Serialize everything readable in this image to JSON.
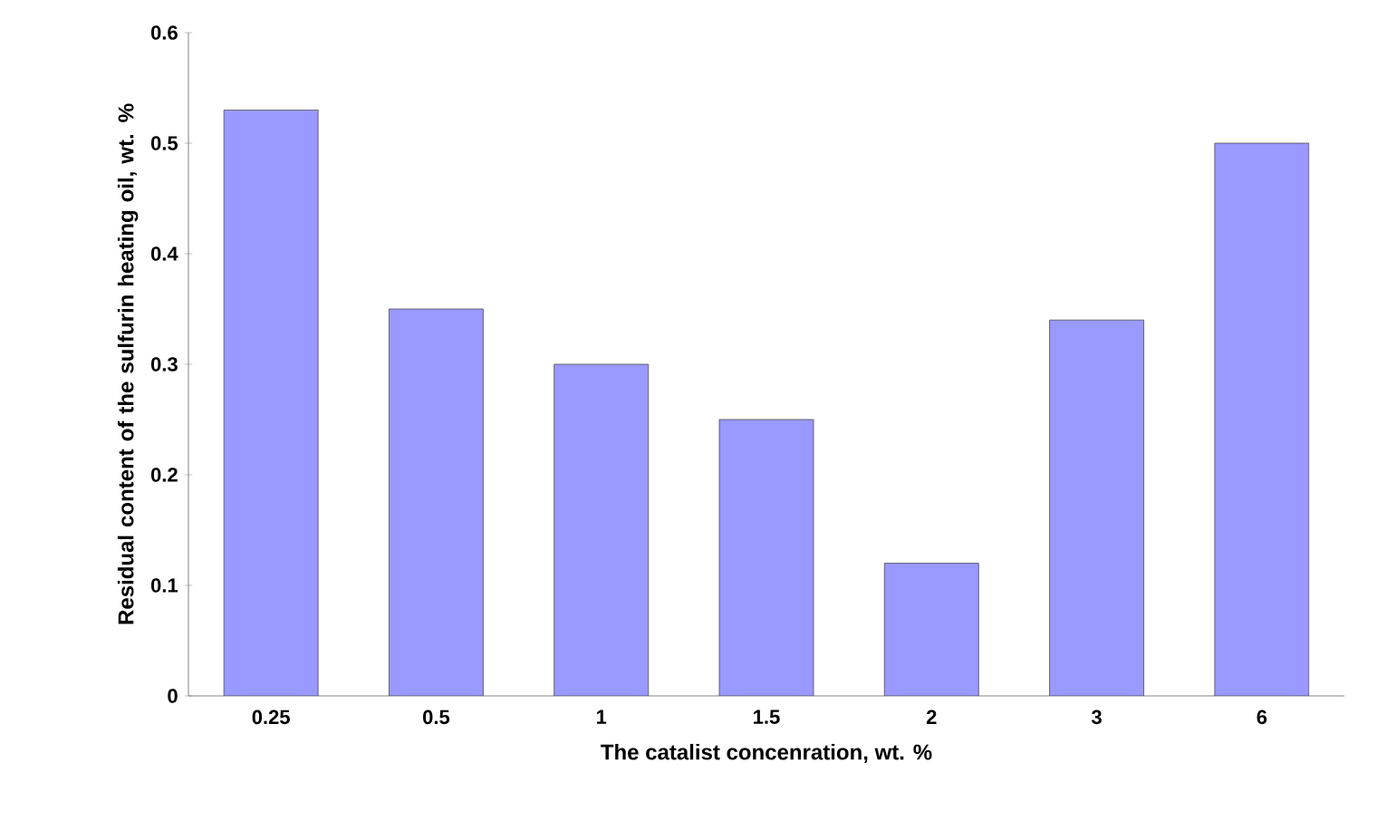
{
  "chart_data": {
    "type": "bar",
    "xlabel": "The catalist concenration, wt. %",
    "ylabel": "Residual content of the sulfurin heating oil, wt. %",
    "categories": [
      "0.25",
      "0.5",
      "1",
      "1.5",
      "2",
      "3",
      "6"
    ],
    "values": [
      0.53,
      0.35,
      0.3,
      0.25,
      0.12,
      0.34,
      0.5
    ],
    "color": "#9999ff",
    "ylim": [
      0,
      0.6
    ],
    "yticks": [
      0,
      0.1,
      0.2,
      0.3,
      0.4,
      0.5,
      0.6
    ]
  }
}
